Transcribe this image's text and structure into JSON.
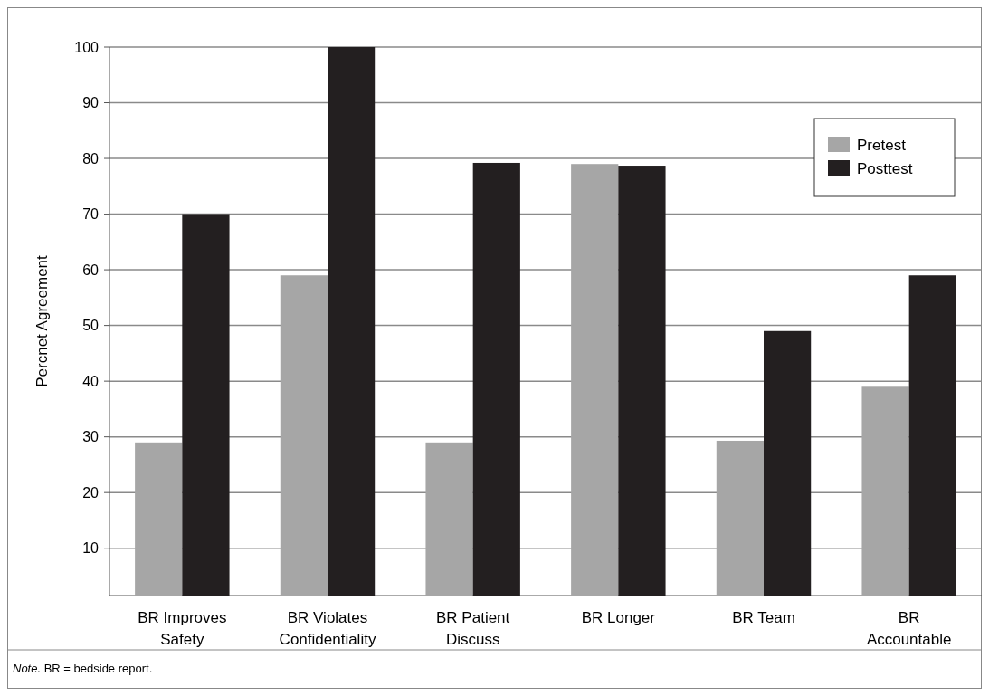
{
  "chart_data": {
    "type": "bar",
    "ylabel": "Percnet Agreement",
    "categories": [
      "BR Improves Safety",
      "BR Violates Confidentiality",
      "BR Patient Discuss",
      "BR Longer",
      "BR Team",
      "BR Accountable"
    ],
    "series": [
      {
        "name": "Pretest",
        "color": "#a6a6a6",
        "values": [
          29,
          59,
          29,
          79,
          29.3,
          39
        ]
      },
      {
        "name": "Posttest",
        "color": "#231f20",
        "values": [
          70,
          100,
          79.2,
          78.7,
          49,
          59
        ]
      }
    ],
    "ylim": [
      1.5,
      100
    ],
    "yticks": [
      10,
      20,
      30,
      40,
      50,
      60,
      70,
      80,
      90,
      100
    ],
    "grid": "y",
    "legend": "top right",
    "annotations": [
      "Note. BR = bedside report."
    ]
  }
}
